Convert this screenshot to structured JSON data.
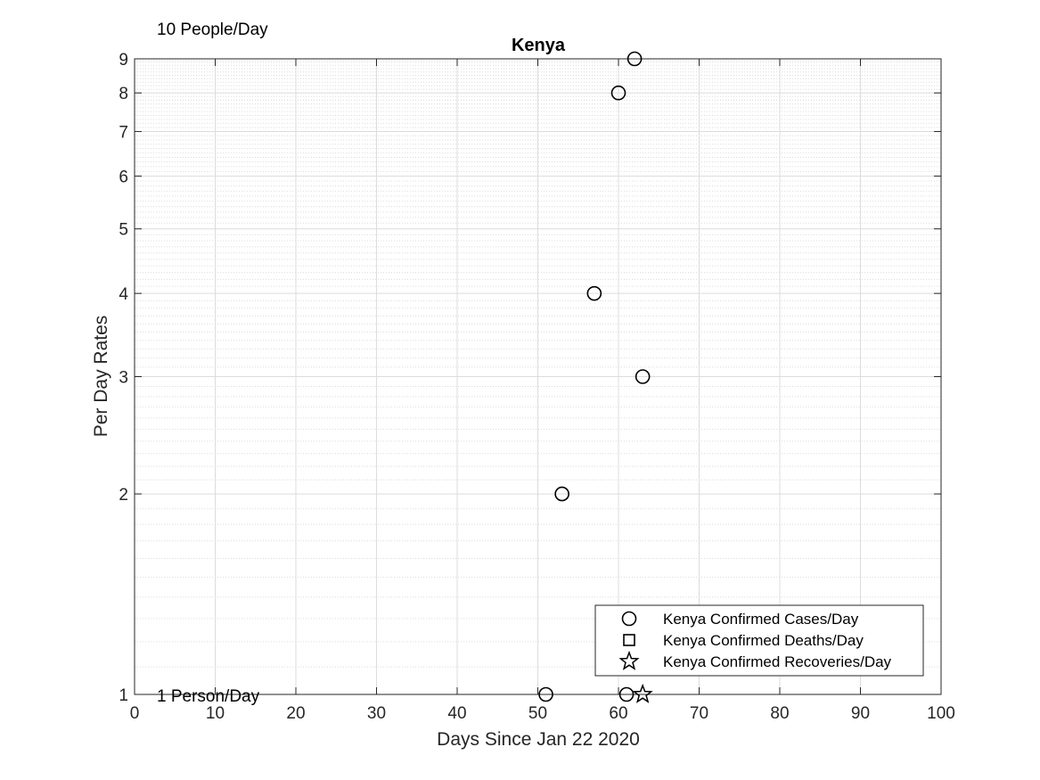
{
  "chart_data": {
    "type": "scatter",
    "title": "Kenya",
    "xlabel": "Days Since Jan 22 2020",
    "ylabel": "Per Day Rates",
    "xlim": [
      0,
      100
    ],
    "ylim": [
      1,
      9
    ],
    "yscale": "log",
    "grid": true,
    "minor_grid": true,
    "x_ticks": [
      0,
      10,
      20,
      30,
      40,
      50,
      60,
      70,
      80,
      90,
      100
    ],
    "y_ticks": [
      1,
      2,
      3,
      4,
      5,
      6,
      7,
      8,
      9
    ],
    "annotations": {
      "top": "10 People/Day",
      "bottom": "1 Person/Day"
    },
    "legend_position": "bottom-right",
    "series": [
      {
        "name": "Kenya Confirmed Cases/Day",
        "marker": "circle",
        "x": [
          51,
          53,
          57,
          60,
          61,
          62,
          63
        ],
        "y": [
          1,
          2,
          4,
          8,
          1,
          9,
          3
        ]
      },
      {
        "name": "Kenya Confirmed Deaths/Day",
        "marker": "square",
        "x": [],
        "y": []
      },
      {
        "name": "Kenya Confirmed Recoveries/Day",
        "marker": "star",
        "x": [
          63
        ],
        "y": [
          1
        ]
      }
    ],
    "colors": {
      "marker": "#000000",
      "grid": "#dcdcdc",
      "axis": "#262626"
    }
  }
}
